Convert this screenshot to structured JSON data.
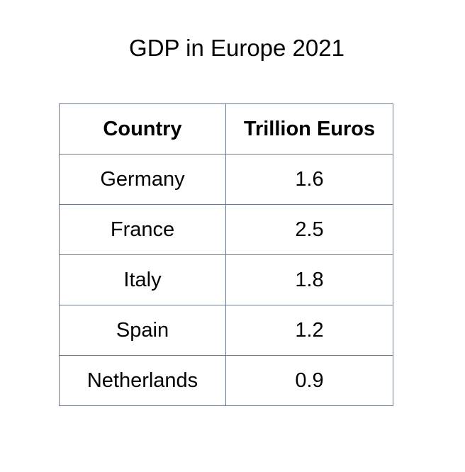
{
  "chart_data": {
    "type": "table",
    "title": "GDP in Europe 2021",
    "columns": [
      "Country",
      "Trillion Euros"
    ],
    "rows": [
      {
        "country": "Germany",
        "value": "1.6"
      },
      {
        "country": "France",
        "value": "2.5"
      },
      {
        "country": "Italy",
        "value": "1.8"
      },
      {
        "country": "Spain",
        "value": "1.2"
      },
      {
        "country": "Netherlands",
        "value": "0.9"
      }
    ]
  }
}
